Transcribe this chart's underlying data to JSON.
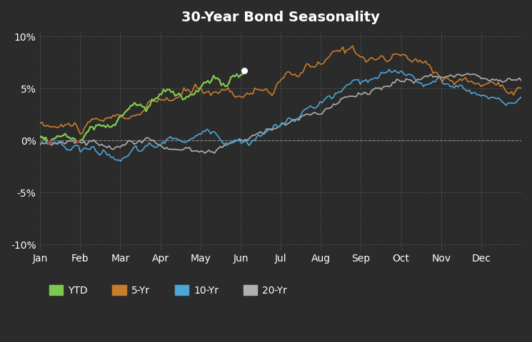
{
  "title": "30-Year Bond Seasonality",
  "background_color": "#2b2b2b",
  "plot_bg_color": "#2b2b2b",
  "grid_color": "#555555",
  "text_color": "#ffffff",
  "title_fontsize": 14,
  "ylim": [
    -10.5,
    10.5
  ],
  "yticks": [
    -10,
    -5,
    0,
    5,
    10
  ],
  "xlabel_months": [
    "Jan",
    "Feb",
    "Mar",
    "Apr",
    "May",
    "Jun",
    "Jul",
    "Aug",
    "Sep",
    "Oct",
    "Nov",
    "Dec"
  ],
  "colors": {
    "ytd": "#7ec850",
    "ytd_neg": "#c0392b",
    "five_yr": "#c87d2a",
    "ten_yr": "#4da6d8",
    "twenty_yr": "#b0b0b0"
  },
  "linewidth": 1.2
}
